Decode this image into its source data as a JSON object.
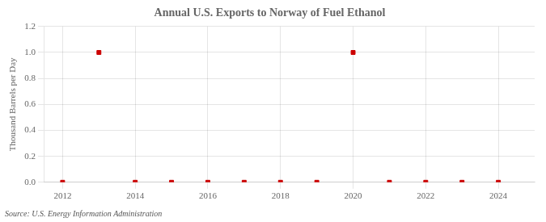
{
  "chart_data": {
    "type": "scatter",
    "title": "Annual U.S. Exports to Norway of Fuel Ethanol",
    "ylabel": "Thousand Barrels per Day",
    "source": "Source: U.S. Energy Information Administration",
    "x": [
      2012,
      2013,
      2014,
      2015,
      2016,
      2017,
      2018,
      2019,
      2020,
      2021,
      2022,
      2023,
      2024
    ],
    "values": [
      0.0,
      1.0,
      0.0,
      0.0,
      0.0,
      0.0,
      0.0,
      0.0,
      1.0,
      0.0,
      0.0,
      0.0,
      0.0
    ],
    "color": "#cc0000",
    "marker": "square",
    "xlim": [
      2011.5,
      2025.0
    ],
    "xticks": [
      2012,
      2014,
      2016,
      2018,
      2020,
      2022,
      2024
    ],
    "ylim": [
      0.0,
      1.2
    ],
    "yticks": [
      {
        "value": 0.0,
        "label": "0.0"
      },
      0.2,
      0.4,
      0.6,
      0.8,
      {
        "value": 1.0,
        "label": "1.0"
      },
      1.2
    ],
    "grid": true
  }
}
